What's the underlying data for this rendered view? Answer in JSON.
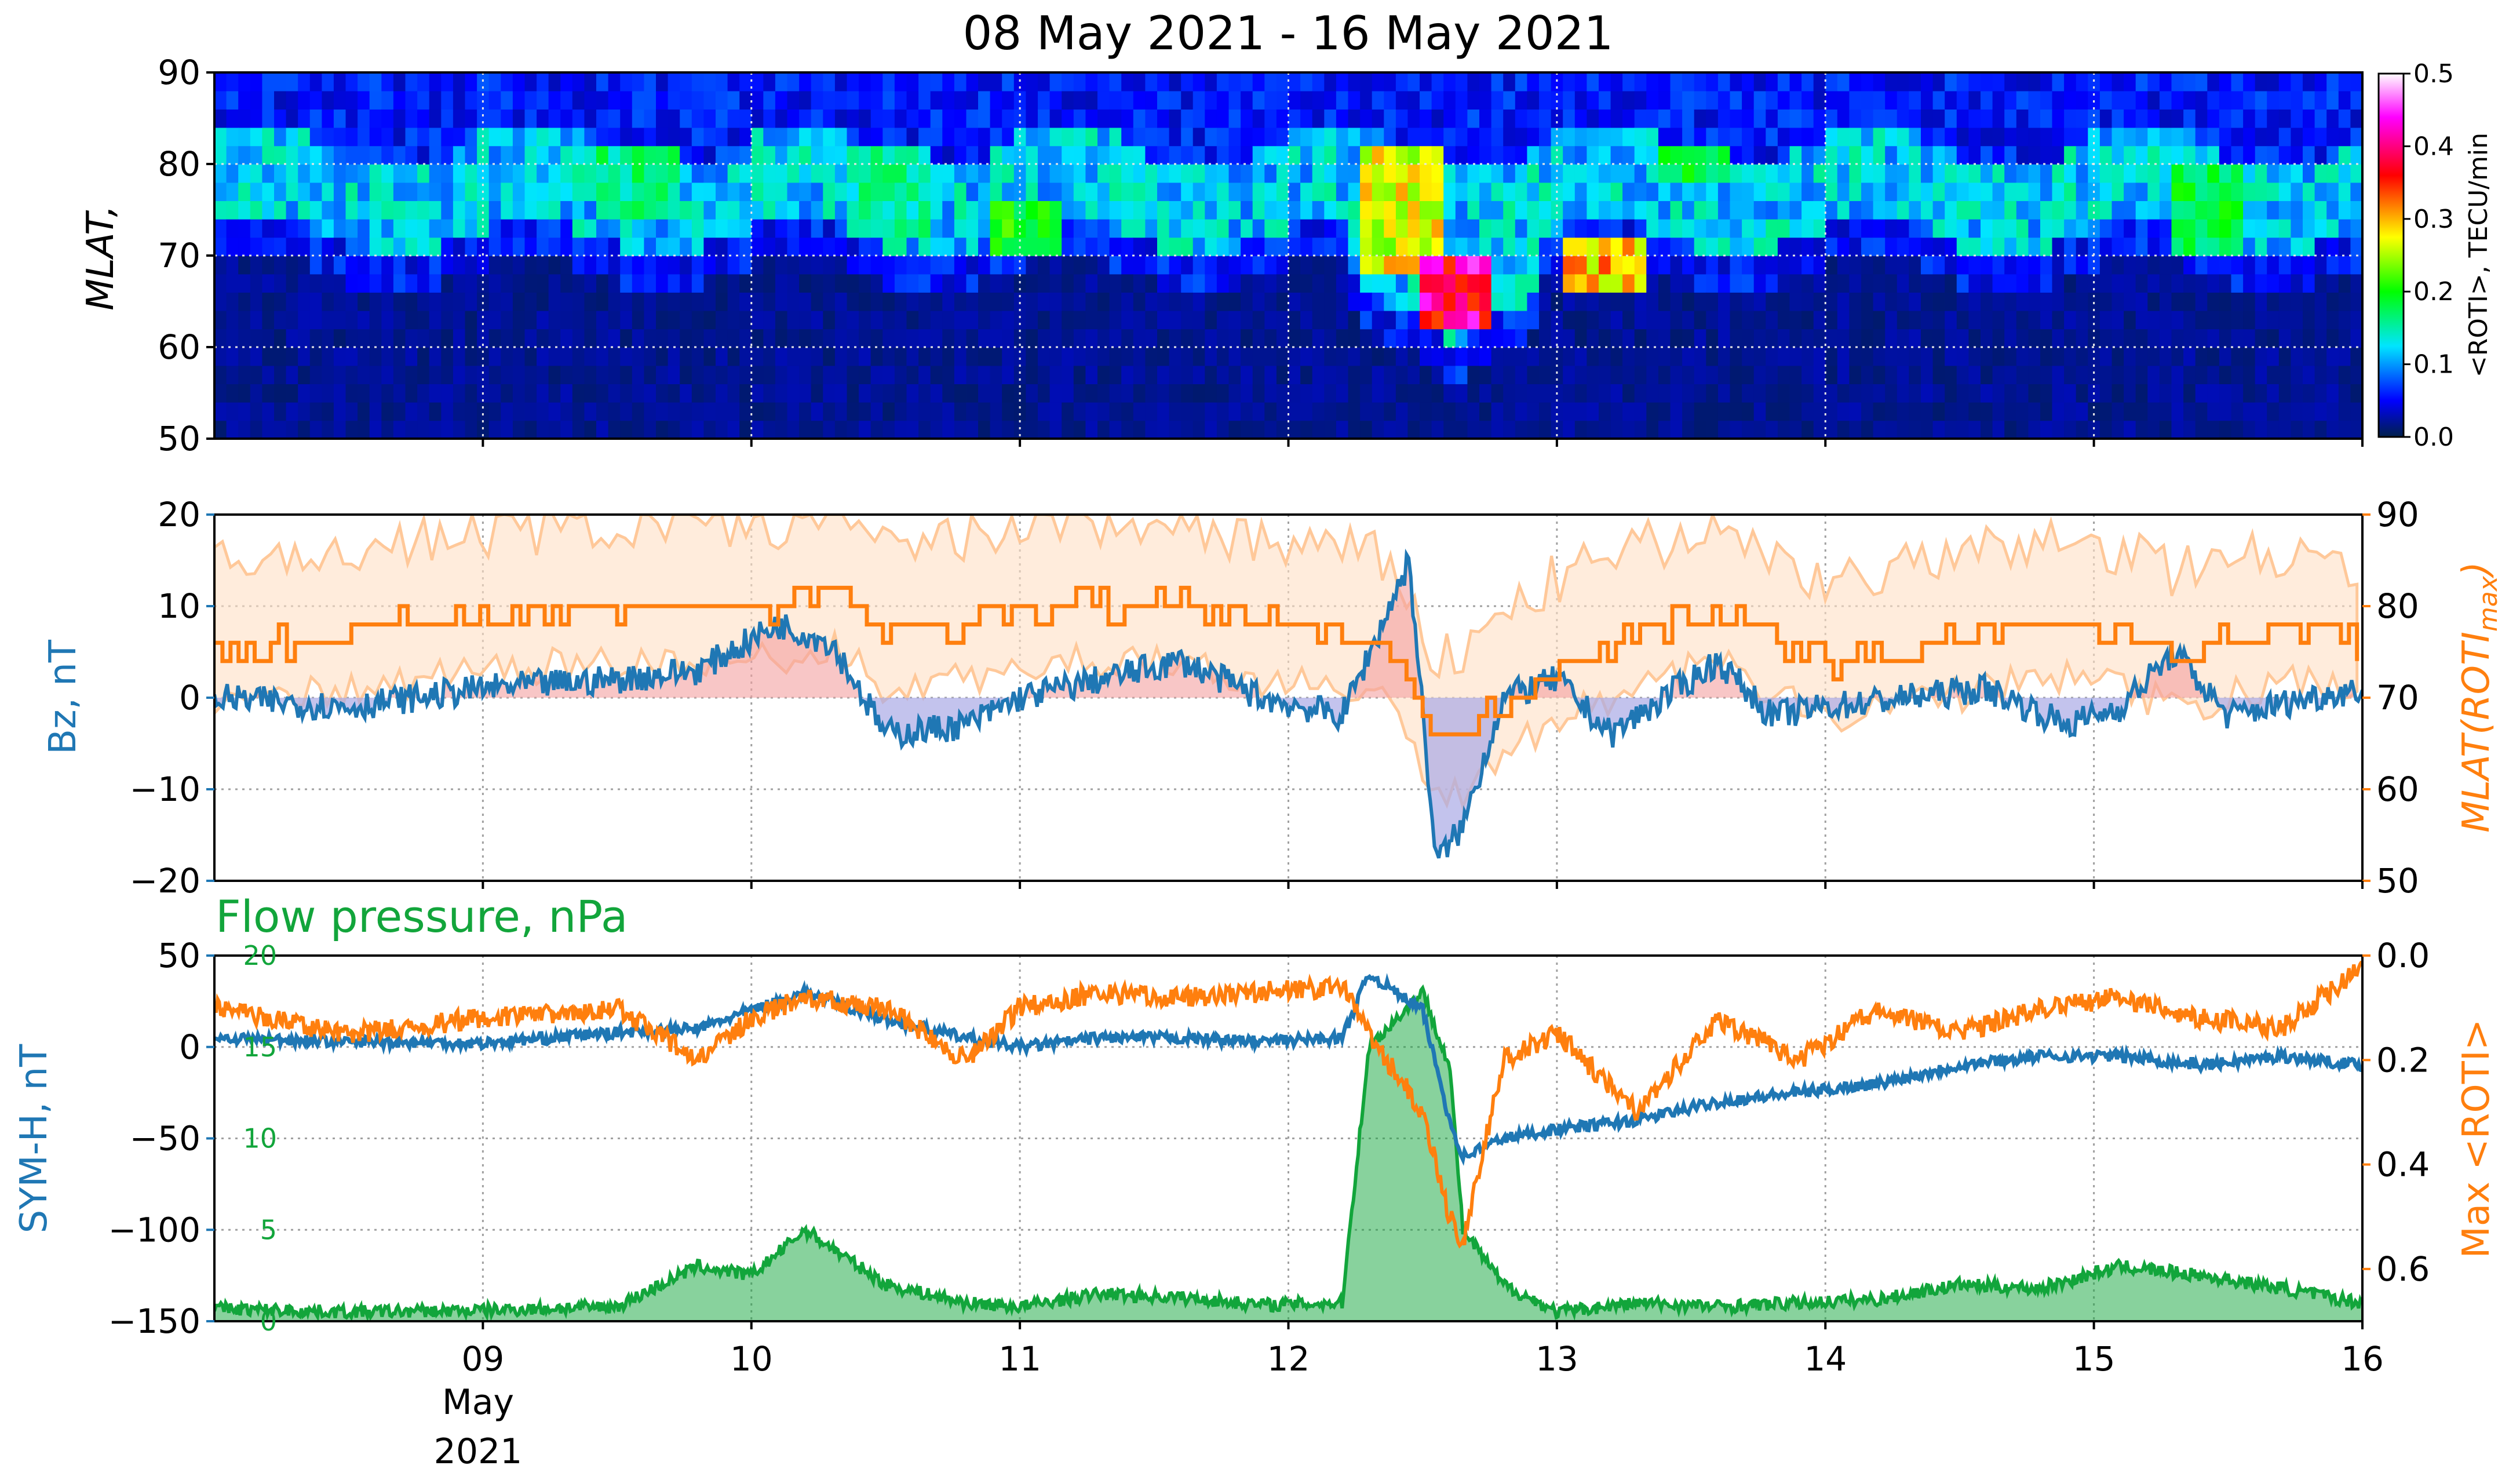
{
  "title": "08 May 2021 - 16 May 2021",
  "x_axis": {
    "ticks": [
      "09",
      "10",
      "11",
      "12",
      "13",
      "14",
      "15",
      "16"
    ],
    "month_label": "May",
    "year_label": "2021"
  },
  "colors": {
    "bz": "#1f77b4",
    "mlat_max": "#ff7f0e",
    "flow_pressure": "#12a53b",
    "grid": "#999999"
  },
  "chart_data": [
    {
      "type": "heatmap",
      "ylabel": "MLAT,",
      "ylim": [
        50,
        90
      ],
      "yticks": [
        "50",
        "60",
        "70",
        "80",
        "90"
      ],
      "x_range_days": [
        8,
        16
      ],
      "colorbar": {
        "label": "<ROTI>, TECU/min",
        "range": [
          0.0,
          0.5
        ],
        "ticks": [
          "0.0",
          "0.1",
          "0.2",
          "0.3",
          "0.4",
          "0.5"
        ],
        "colormap": [
          "#00204a",
          "#0000ff",
          "#00e5ff",
          "#00ff00",
          "#ffff00",
          "#ff0000",
          "#ff00ff",
          "#ffffff"
        ]
      },
      "hotspots": [
        {
          "day": 9.55,
          "mlat_lo": 74,
          "mlat_hi": 82,
          "roti": 0.18
        },
        {
          "day": 10.5,
          "mlat_lo": 73,
          "mlat_hi": 82,
          "roti": 0.17
        },
        {
          "day": 11.0,
          "mlat_lo": 70,
          "mlat_hi": 76,
          "roti": 0.22
        },
        {
          "day": 12.4,
          "mlat_lo": 68,
          "mlat_hi": 82,
          "roti": 0.3
        },
        {
          "day": 12.6,
          "mlat_lo": 63,
          "mlat_hi": 70,
          "roti": 0.45
        },
        {
          "day": 13.15,
          "mlat_lo": 67,
          "mlat_hi": 72,
          "roti": 0.33
        },
        {
          "day": 13.5,
          "mlat_lo": 78,
          "mlat_hi": 82,
          "roti": 0.2
        },
        {
          "day": 15.4,
          "mlat_lo": 70,
          "mlat_hi": 80,
          "roti": 0.2
        }
      ]
    },
    {
      "type": "line",
      "ylabel_left": "Bz, nT",
      "ylabel_right": "MLAT(ROTI",
      "ylabel_right_sub": "max",
      "ylabel_right_close": ")",
      "ylim_left": [
        -20,
        20
      ],
      "ylim_right": [
        50,
        90
      ],
      "yticks_left": [
        "20",
        "10",
        "0",
        "−10",
        "−20"
      ],
      "yticks_right": [
        "90",
        "80",
        "70",
        "60",
        "50"
      ],
      "x": [
        8.0,
        8.5,
        9.0,
        9.5,
        9.8,
        10.1,
        10.3,
        10.5,
        10.8,
        11.0,
        11.3,
        11.6,
        11.9,
        12.2,
        12.35,
        12.45,
        12.55,
        12.65,
        12.8,
        13.0,
        13.2,
        13.4,
        13.6,
        13.8,
        14.0,
        14.3,
        14.6,
        14.9,
        15.1,
        15.3,
        15.5,
        15.8,
        16.0
      ],
      "series": [
        {
          "values": [
            0,
            -1,
            1,
            2,
            3,
            8,
            6,
            -4,
            -3,
            0,
            2,
            4,
            0,
            -2,
            8,
            15,
            -18,
            -14,
            0,
            2,
            -4,
            0,
            4,
            -2,
            -1,
            0,
            1,
            -3,
            -1,
            5,
            -2,
            0,
            1
          ]
        },
        {
          "values": [
            75,
            77,
            79,
            80,
            80,
            80,
            82,
            77,
            78,
            80,
            80,
            80,
            78,
            77,
            76,
            72,
            65,
            66,
            70,
            74,
            76,
            78,
            80,
            76,
            74,
            75,
            77,
            78,
            77,
            75,
            76,
            78,
            75
          ]
        }
      ]
    },
    {
      "type": "line",
      "title": "Flow pressure, nPa",
      "ylabel_left": "SYM-H, nT",
      "ylabel_right": "Max <ROTI>",
      "ylim_left": [
        -150,
        50
      ],
      "ylim_right_inverted": [
        0.0,
        0.7
      ],
      "ylim_pressure": [
        0,
        20
      ],
      "yticks_left": [
        "50",
        "0",
        "−50",
        "−100",
        "−150"
      ],
      "yticks_right": [
        "0.0",
        "0.2",
        "0.4",
        "0.6"
      ],
      "yticks_pressure": [
        "20",
        "15",
        "10",
        "5",
        "0"
      ],
      "x": [
        8.0,
        8.5,
        9.0,
        9.5,
        9.8,
        10.0,
        10.2,
        10.5,
        10.8,
        11.0,
        11.3,
        11.6,
        11.9,
        12.2,
        12.3,
        12.5,
        12.6,
        12.65,
        12.8,
        13.0,
        13.3,
        13.6,
        13.9,
        14.2,
        14.5,
        14.8,
        15.1,
        15.4,
        15.7,
        16.0
      ],
      "series": [
        {
          "values": [
            5,
            3,
            2,
            8,
            10,
            20,
            30,
            15,
            5,
            0,
            5,
            5,
            3,
            5,
            40,
            20,
            -40,
            -60,
            -50,
            -45,
            -40,
            -30,
            -25,
            -20,
            -10,
            -5,
            -5,
            -10,
            -5,
            -10
          ]
        },
        {
          "values": [
            0.1,
            0.15,
            0.12,
            0.1,
            0.2,
            0.12,
            0.08,
            0.1,
            0.2,
            0.1,
            0.07,
            0.08,
            0.07,
            0.06,
            0.15,
            0.3,
            0.5,
            0.55,
            0.2,
            0.15,
            0.3,
            0.12,
            0.2,
            0.1,
            0.15,
            0.1,
            0.08,
            0.12,
            0.14,
            0.02
          ]
        },
        {
          "values": [
            0.7,
            0.5,
            0.6,
            0.8,
            3.0,
            2.5,
            5.0,
            2.0,
            1.0,
            0.8,
            1.5,
            1.3,
            0.9,
            1.0,
            15,
            18,
            14,
            5,
            2.0,
            0.5,
            1.0,
            0.8,
            1.0,
            1.2,
            2.0,
            1.8,
            3.0,
            2.5,
            1.8,
            1.0
          ]
        }
      ]
    }
  ]
}
